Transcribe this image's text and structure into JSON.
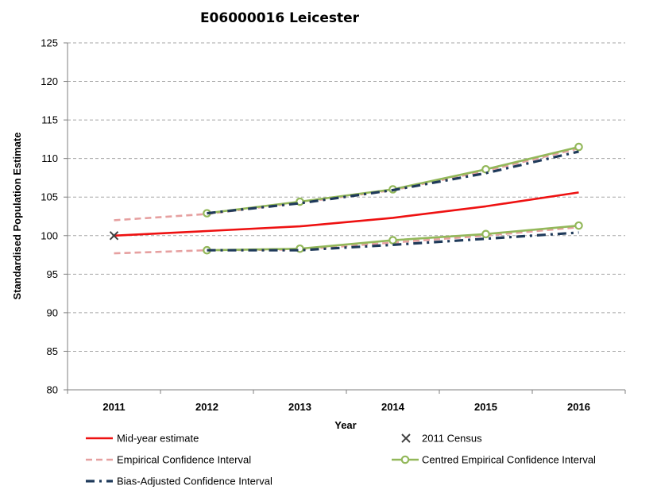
{
  "chart_data": {
    "type": "line",
    "title": "E06000016 Leicester",
    "xlabel": "Year",
    "ylabel": "Standardised Population Estimate",
    "ylim": [
      80,
      125
    ],
    "yticks": [
      80,
      85,
      90,
      95,
      100,
      105,
      110,
      115,
      120,
      125
    ],
    "categories": [
      "2011",
      "2012",
      "2013",
      "2014",
      "2015",
      "2016"
    ],
    "grid": "horizontal dashed",
    "legend_position": "bottom",
    "series": [
      {
        "key": "mye",
        "name": "Mid-year estimate",
        "color": "#ee1111",
        "style": "solid",
        "x": [
          "2011",
          "2012",
          "2013",
          "2014",
          "2015",
          "2016"
        ],
        "values": [
          100,
          100.6,
          101.2,
          102.3,
          103.8,
          105.6
        ]
      },
      {
        "key": "census",
        "name": "2011 Census",
        "color": "#404040",
        "style": "marker-x",
        "x": [
          "2011"
        ],
        "values": [
          100
        ]
      },
      {
        "key": "emp_upper",
        "name": "Empirical Confidence Interval",
        "color": "#e6a0a0",
        "style": "dashed",
        "x": [
          "2011",
          "2012",
          "2013",
          "2014",
          "2015",
          "2016"
        ],
        "values": [
          102.0,
          102.8,
          104.3,
          105.9,
          108.4,
          111.3
        ]
      },
      {
        "key": "emp_lower",
        "name": "Empirical Confidence Interval",
        "color": "#e6a0a0",
        "style": "dashed",
        "x": [
          "2011",
          "2012",
          "2013",
          "2014",
          "2015",
          "2016"
        ],
        "values": [
          97.7,
          98.1,
          98.2,
          99.1,
          100.0,
          101.1
        ]
      },
      {
        "key": "bias_upper",
        "name": "Bias-Adjusted Confidence Interval",
        "color": "#1f3a5a",
        "style": "dashdot",
        "x": [
          "2012",
          "2013",
          "2014",
          "2015",
          "2016"
        ],
        "values": [
          102.9,
          104.2,
          105.9,
          108.1,
          110.9
        ]
      },
      {
        "key": "bias_lower",
        "name": "Bias-Adjusted Confidence Interval",
        "color": "#1f3a5a",
        "style": "dashdot",
        "x": [
          "2012",
          "2013",
          "2014",
          "2015",
          "2016"
        ],
        "values": [
          98.1,
          98.1,
          98.8,
          99.6,
          100.4
        ]
      },
      {
        "key": "cent_upper",
        "name": "Centred Empirical Confidence Interval",
        "color": "#93b85a",
        "style": "solid-circle",
        "x": [
          "2012",
          "2013",
          "2014",
          "2015",
          "2016"
        ],
        "values": [
          102.9,
          104.4,
          106.0,
          108.6,
          111.5
        ]
      },
      {
        "key": "cent_lower",
        "name": "Centred Empirical Confidence Interval",
        "color": "#93b85a",
        "style": "solid-circle",
        "x": [
          "2012",
          "2013",
          "2014",
          "2015",
          "2016"
        ],
        "values": [
          98.1,
          98.3,
          99.4,
          100.2,
          101.3
        ]
      }
    ],
    "legend": [
      {
        "label": "Mid-year estimate",
        "style": "solid",
        "color": "#ee1111"
      },
      {
        "label": "2011 Census",
        "style": "marker-x",
        "color": "#404040"
      },
      {
        "label": "Empirical Confidence Interval",
        "style": "dashed",
        "color": "#e6a0a0"
      },
      {
        "label": "Centred Empirical Confidence Interval",
        "style": "solid-circle",
        "color": "#93b85a"
      },
      {
        "label": "Bias-Adjusted Confidence Interval",
        "style": "dashdot",
        "color": "#1f3a5a"
      }
    ]
  }
}
